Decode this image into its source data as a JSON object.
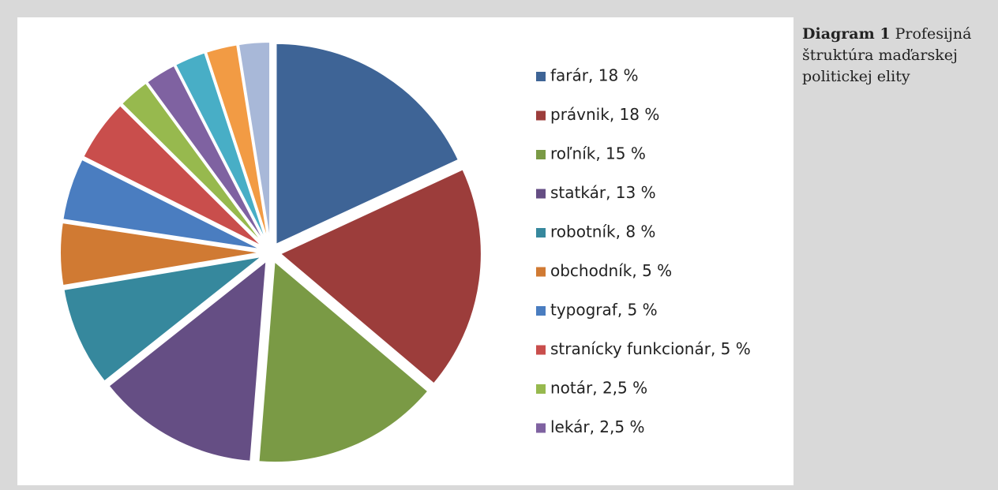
{
  "chart_data": {
    "type": "pie",
    "caption": {
      "label": "Diagram 1",
      "text": "Profesijná štruktúra maďarskej politickej elity"
    },
    "categories": [
      "farár, 18 %",
      "právnik, 18 %",
      "roľník, 15 %",
      "statkár, 13 %",
      "robotník, 8 %",
      "obchodník, 5 %",
      "typograf, 5 %",
      "stranícky funkcionár, 5 %",
      "notár, 2,5 %",
      "lekár, 2,5 %",
      null,
      null,
      null
    ],
    "values": [
      18,
      18,
      15,
      13,
      8,
      5,
      5,
      5,
      2.5,
      2.5,
      2.5,
      2.5,
      2.5
    ],
    "colors": [
      "#3e6496",
      "#9c3d3b",
      "#7a9a45",
      "#654e84",
      "#36889d",
      "#d07a33",
      "#4a7dc0",
      "#c94e4c",
      "#97b94e",
      "#7f62a1",
      "#48aec6",
      "#f29b44",
      "#a8b8d8"
    ]
  }
}
